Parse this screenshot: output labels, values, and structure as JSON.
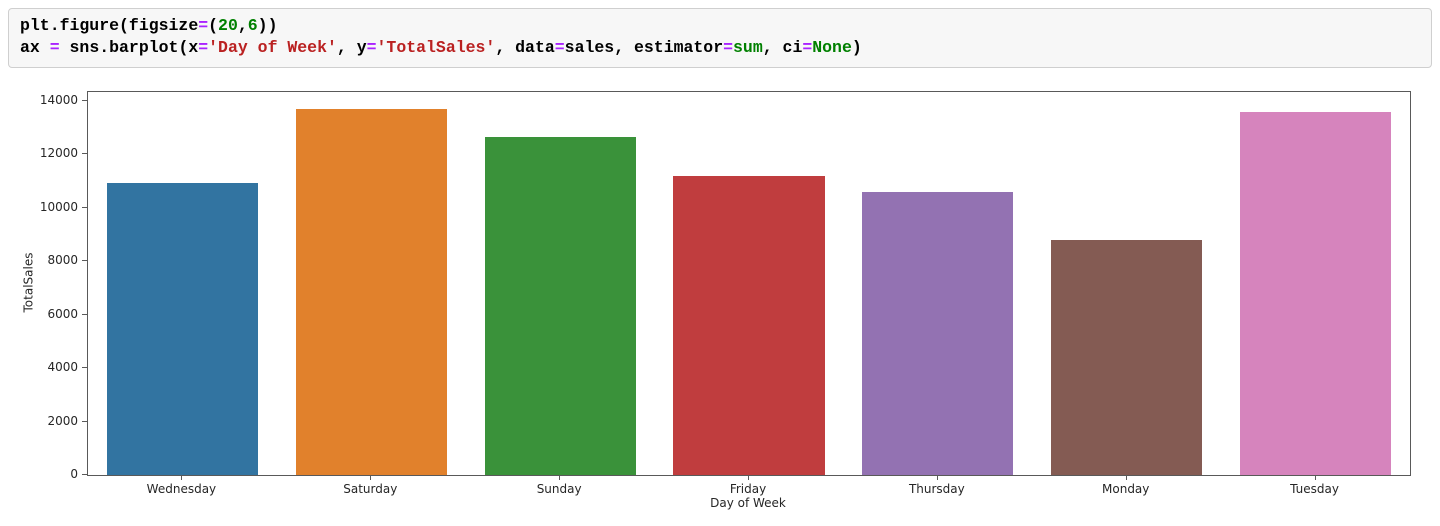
{
  "code_cell": {
    "lines": [
      [
        {
          "text": "plt.figure(figsize",
          "type": "plain"
        },
        {
          "text": "=",
          "type": "op"
        },
        {
          "text": "(",
          "type": "plain"
        },
        {
          "text": "20",
          "type": "num"
        },
        {
          "text": ",",
          "type": "plain"
        },
        {
          "text": "6",
          "type": "num"
        },
        {
          "text": "))",
          "type": "plain"
        }
      ],
      [
        {
          "text": "ax ",
          "type": "plain"
        },
        {
          "text": "=",
          "type": "op"
        },
        {
          "text": " sns.barplot(x",
          "type": "plain"
        },
        {
          "text": "=",
          "type": "op"
        },
        {
          "text": "'Day of Week'",
          "type": "str"
        },
        {
          "text": ", y",
          "type": "plain"
        },
        {
          "text": "=",
          "type": "op"
        },
        {
          "text": "'TotalSales'",
          "type": "str"
        },
        {
          "text": ", data",
          "type": "plain"
        },
        {
          "text": "=",
          "type": "op"
        },
        {
          "text": "sales",
          "type": "plain"
        },
        {
          "text": ", estimator",
          "type": "plain"
        },
        {
          "text": "=",
          "type": "op"
        },
        {
          "text": "sum",
          "type": "builtin"
        },
        {
          "text": ", ci",
          "type": "plain"
        },
        {
          "text": "=",
          "type": "op"
        },
        {
          "text": "None",
          "type": "kw"
        },
        {
          "text": ")",
          "type": "plain"
        }
      ]
    ]
  },
  "chart_data": {
    "type": "bar",
    "title": "",
    "xlabel": "Day of Week",
    "ylabel": "TotalSales",
    "categories": [
      "Wednesday",
      "Saturday",
      "Sunday",
      "Friday",
      "Thursday",
      "Monday",
      "Tuesday"
    ],
    "values": [
      10950,
      13700,
      12650,
      11200,
      10600,
      8800,
      13600
    ],
    "bar_colors": [
      "#3274a1",
      "#e1812c",
      "#3a923a",
      "#c03d3e",
      "#9372b2",
      "#845b53",
      "#d684bd"
    ],
    "ylim": [
      0,
      14340
    ],
    "yticks": [
      0,
      2000,
      4000,
      6000,
      8000,
      10000,
      12000,
      14000
    ],
    "grid": false,
    "bar_width_fraction": 0.8
  }
}
